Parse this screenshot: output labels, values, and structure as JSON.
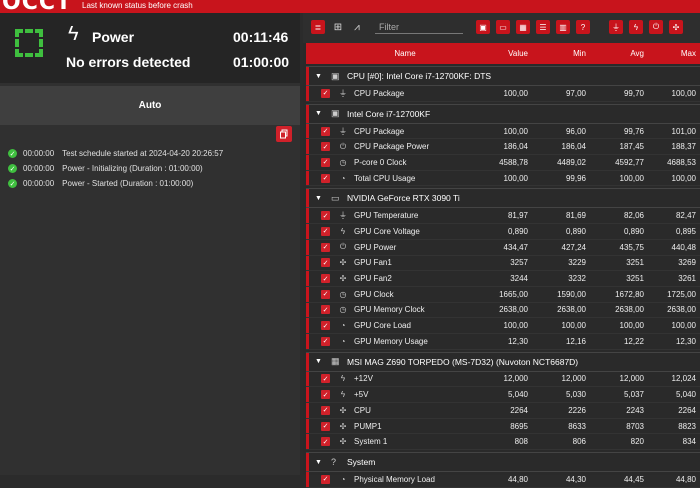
{
  "header": {
    "logo": "OCCT",
    "status_text": "Last known status before crash"
  },
  "status": {
    "mode": "Power",
    "timer_elapsed": "00:11:46",
    "message": "No errors detected",
    "timer_total": "01:00:00"
  },
  "auto_button": "Auto",
  "log": [
    {
      "time": "00:00:00",
      "text": "Test schedule started at 2024-04-20 20:26:57"
    },
    {
      "time": "00:00:00",
      "text": "Power - Initializing (Duration : 01:00:00)"
    },
    {
      "time": "00:00:00",
      "text": "Power - Started (Duration : 01:00:00)"
    }
  ],
  "filter": {
    "placeholder": "Filter"
  },
  "columns": {
    "name": "Name",
    "value": "Value",
    "min": "Min",
    "avg": "Avg",
    "max": "Max"
  },
  "groups": [
    {
      "title": "CPU [#0]: Intel Core i7-12700KF: DTS",
      "icon": "cpu-icon",
      "rows": [
        {
          "icon": "temperature-icon",
          "glyph": "⏚",
          "name": "CPU Package",
          "value": "100,00",
          "min": "97,00",
          "avg": "99,70",
          "max": "100,00"
        }
      ]
    },
    {
      "title": "Intel Core i7-12700KF",
      "icon": "chip-icon",
      "rows": [
        {
          "icon": "temperature-icon",
          "glyph": "⏚",
          "name": "CPU Package",
          "value": "100,00",
          "min": "96,00",
          "avg": "99,76",
          "max": "101,00"
        },
        {
          "icon": "power-icon",
          "glyph": "⏻",
          "name": "CPU Package Power",
          "value": "186,04",
          "min": "186,04",
          "avg": "187,45",
          "max": "188,37"
        },
        {
          "icon": "clock-icon",
          "glyph": "◷",
          "name": "P-core 0 Clock",
          "value": "4588,78",
          "min": "4489,02",
          "avg": "4592,77",
          "max": "4688,53"
        },
        {
          "icon": "usage-icon",
          "glyph": "◔",
          "name": "Total CPU Usage",
          "value": "100,00",
          "min": "99,96",
          "avg": "100,00",
          "max": "100,00"
        }
      ]
    },
    {
      "title": "NVIDIA GeForce RTX 3090 Ti",
      "icon": "gpu-icon",
      "rows": [
        {
          "icon": "temperature-icon",
          "glyph": "⏚",
          "name": "GPU Temperature",
          "value": "81,97",
          "min": "81,69",
          "avg": "82,06",
          "max": "82,47"
        },
        {
          "icon": "voltage-icon",
          "glyph": "ϟ",
          "name": "GPU Core Voltage",
          "value": "0,890",
          "min": "0,890",
          "avg": "0,890",
          "max": "0,895"
        },
        {
          "icon": "power-icon",
          "glyph": "⏻",
          "name": "GPU Power",
          "value": "434,47",
          "min": "427,24",
          "avg": "435,75",
          "max": "440,48"
        },
        {
          "icon": "fan-icon",
          "glyph": "✣",
          "name": "GPU Fan1",
          "value": "3257",
          "min": "3229",
          "avg": "3251",
          "max": "3269"
        },
        {
          "icon": "fan-icon",
          "glyph": "✣",
          "name": "GPU Fan2",
          "value": "3244",
          "min": "3232",
          "avg": "3251",
          "max": "3261"
        },
        {
          "icon": "clock-icon",
          "glyph": "◷",
          "name": "GPU Clock",
          "value": "1665,00",
          "min": "1590,00",
          "avg": "1672,80",
          "max": "1725,00"
        },
        {
          "icon": "clock-icon",
          "glyph": "◷",
          "name": "GPU Memory Clock",
          "value": "2638,00",
          "min": "2638,00",
          "avg": "2638,00",
          "max": "2638,00"
        },
        {
          "icon": "usage-icon",
          "glyph": "◔",
          "name": "GPU Core Load",
          "value": "100,00",
          "min": "100,00",
          "avg": "100,00",
          "max": "100,00"
        },
        {
          "icon": "usage-icon",
          "glyph": "◔",
          "name": "GPU Memory Usage",
          "value": "12,30",
          "min": "12,16",
          "avg": "12,22",
          "max": "12,30"
        }
      ]
    },
    {
      "title": "MSI MAG Z690 TORPEDO (MS-7D32) (Nuvoton NCT6687D)",
      "icon": "motherboard-icon",
      "rows": [
        {
          "icon": "voltage-icon",
          "glyph": "ϟ",
          "name": "+12V",
          "value": "12,000",
          "min": "12,000",
          "avg": "12,000",
          "max": "12,024"
        },
        {
          "icon": "voltage-icon",
          "glyph": "ϟ",
          "name": "+5V",
          "value": "5,040",
          "min": "5,030",
          "avg": "5,037",
          "max": "5,040"
        },
        {
          "icon": "fan-icon",
          "glyph": "✣",
          "name": "CPU",
          "value": "2264",
          "min": "2226",
          "avg": "2243",
          "max": "2264"
        },
        {
          "icon": "fan-icon",
          "glyph": "✣",
          "name": "PUMP1",
          "value": "8695",
          "min": "8633",
          "avg": "8703",
          "max": "8823"
        },
        {
          "icon": "fan-icon",
          "glyph": "✣",
          "name": "System 1",
          "value": "808",
          "min": "806",
          "avg": "820",
          "max": "834"
        }
      ]
    },
    {
      "title": "System",
      "icon": "help-icon",
      "rows": [
        {
          "icon": "usage-icon",
          "glyph": "◔",
          "name": "Physical Memory Load",
          "value": "44,80",
          "min": "44,30",
          "avg": "44,45",
          "max": "44,80"
        }
      ]
    }
  ]
}
